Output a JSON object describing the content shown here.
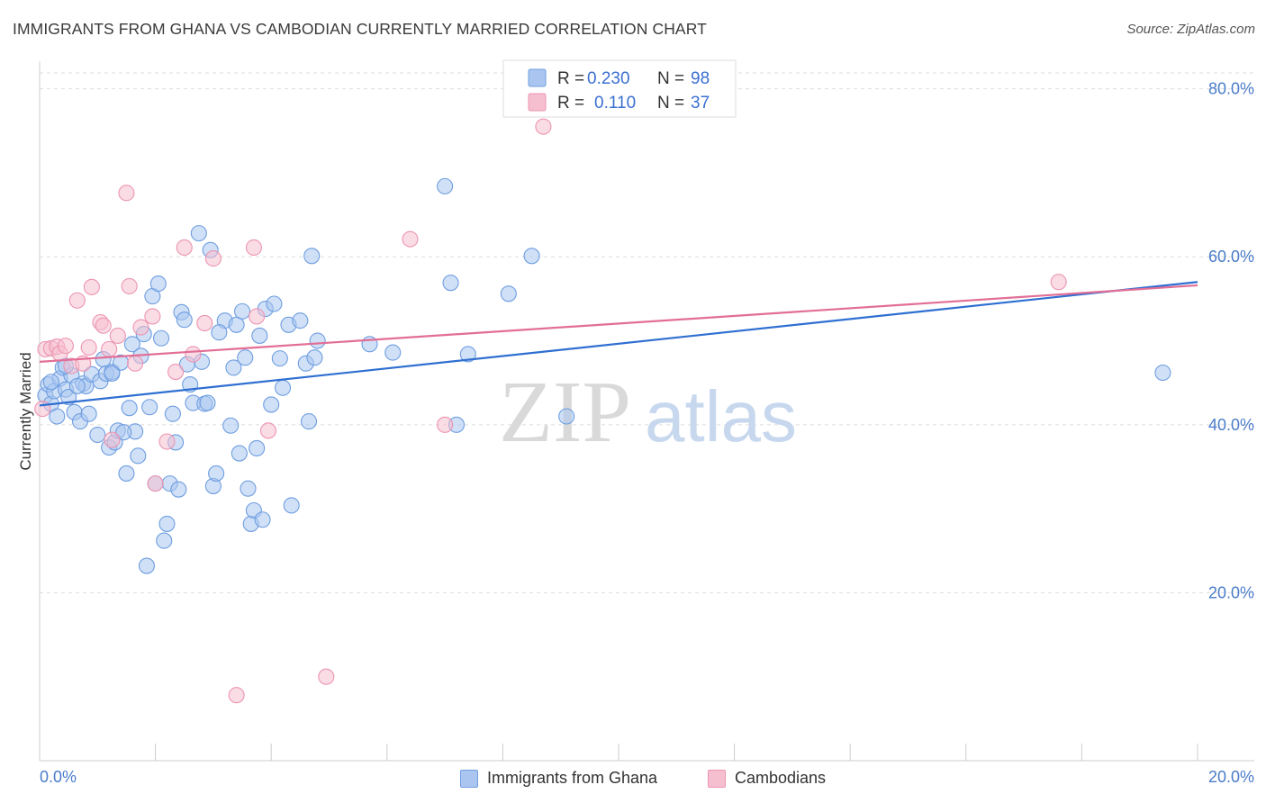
{
  "title": "IMMIGRANTS FROM GHANA VS CAMBODIAN CURRENTLY MARRIED CORRELATION CHART",
  "source": "Source: ZipAtlas.com",
  "watermark": {
    "zip": "ZIP",
    "atlas": "atlas"
  },
  "legend_top": [
    {
      "r_label": "R =",
      "r_value": "0.230",
      "n_label": "N =",
      "n_value": "98"
    },
    {
      "r_label": "R =",
      "r_value": "0.110",
      "n_label": "N =",
      "n_value": "37"
    }
  ],
  "legend_bottom": [
    {
      "label": "Immigrants from Ghana"
    },
    {
      "label": "Cambodians"
    }
  ],
  "colors": {
    "ghana_fill": "#aac6f0",
    "ghana_stroke": "#6f9ee0",
    "ghana_line": "#2f6fd1",
    "camb_fill": "#f6bfd0",
    "camb_stroke": "#ec94b1",
    "camb_line": "#e26e96",
    "tick_text": "#4a7cc9",
    "grid": "#dddddd"
  },
  "chart_data": {
    "type": "scatter",
    "ylabel": "Currently Married",
    "xlim": [
      0,
      20
    ],
    "ylim": [
      0,
      82
    ],
    "y_ticks": [
      {
        "value": 80,
        "label": "80.0%"
      },
      {
        "value": 60,
        "label": "60.0%"
      },
      {
        "value": 40,
        "label": "40.0%"
      },
      {
        "value": 20,
        "label": "20.0%"
      }
    ],
    "x_ticks_labeled": [
      {
        "value": 0,
        "label": "0.0%"
      },
      {
        "value": 20,
        "label": "20.0%"
      }
    ],
    "grid": true,
    "series": [
      {
        "name": "Immigrants from Ghana",
        "r": 0.23,
        "n": 98,
        "trend": [
          [
            0,
            42.3
          ],
          [
            20,
            57.0
          ]
        ],
        "points": [
          [
            0.1,
            43.5
          ],
          [
            0.15,
            44.8
          ],
          [
            0.2,
            42.5
          ],
          [
            0.25,
            44.0
          ],
          [
            0.3,
            41.0
          ],
          [
            0.35,
            45.5
          ],
          [
            0.4,
            46.8
          ],
          [
            0.45,
            44.2
          ],
          [
            0.5,
            43.3
          ],
          [
            0.55,
            45.9
          ],
          [
            0.6,
            41.5
          ],
          [
            0.7,
            40.4
          ],
          [
            0.75,
            44.9
          ],
          [
            0.8,
            44.6
          ],
          [
            0.85,
            41.3
          ],
          [
            0.9,
            46.0
          ],
          [
            1.0,
            38.8
          ],
          [
            1.05,
            45.2
          ],
          [
            1.1,
            47.8
          ],
          [
            1.15,
            46.1
          ],
          [
            1.2,
            37.3
          ],
          [
            1.25,
            46.3
          ],
          [
            1.3,
            37.9
          ],
          [
            1.35,
            39.3
          ],
          [
            1.4,
            47.4
          ],
          [
            1.5,
            34.2
          ],
          [
            1.55,
            42.0
          ],
          [
            1.6,
            49.6
          ],
          [
            1.65,
            39.2
          ],
          [
            1.7,
            36.3
          ],
          [
            1.75,
            48.2
          ],
          [
            1.8,
            50.8
          ],
          [
            1.85,
            23.2
          ],
          [
            1.9,
            42.1
          ],
          [
            1.95,
            55.3
          ],
          [
            2.0,
            33.0
          ],
          [
            2.05,
            56.8
          ],
          [
            2.1,
            50.3
          ],
          [
            2.15,
            26.2
          ],
          [
            2.2,
            28.2
          ],
          [
            2.25,
            33.0
          ],
          [
            2.3,
            41.3
          ],
          [
            2.35,
            37.9
          ],
          [
            2.4,
            32.3
          ],
          [
            2.45,
            53.4
          ],
          [
            2.5,
            52.5
          ],
          [
            2.6,
            44.8
          ],
          [
            2.65,
            42.6
          ],
          [
            2.75,
            62.8
          ],
          [
            2.8,
            47.5
          ],
          [
            2.85,
            42.5
          ],
          [
            2.9,
            42.6
          ],
          [
            2.95,
            60.8
          ],
          [
            3.0,
            32.7
          ],
          [
            3.05,
            34.2
          ],
          [
            3.2,
            52.4
          ],
          [
            3.3,
            39.9
          ],
          [
            3.35,
            46.8
          ],
          [
            3.4,
            51.9
          ],
          [
            3.45,
            36.6
          ],
          [
            3.5,
            53.5
          ],
          [
            3.55,
            48.0
          ],
          [
            3.6,
            32.4
          ],
          [
            3.65,
            28.2
          ],
          [
            3.7,
            29.8
          ],
          [
            3.75,
            37.2
          ],
          [
            3.8,
            50.6
          ],
          [
            3.85,
            28.7
          ],
          [
            3.9,
            53.8
          ],
          [
            4.0,
            42.4
          ],
          [
            4.05,
            54.4
          ],
          [
            4.15,
            47.9
          ],
          [
            4.2,
            44.4
          ],
          [
            4.3,
            51.9
          ],
          [
            4.35,
            30.4
          ],
          [
            4.5,
            52.4
          ],
          [
            4.6,
            47.3
          ],
          [
            4.65,
            40.4
          ],
          [
            4.7,
            60.1
          ],
          [
            4.75,
            48.0
          ],
          [
            4.8,
            50.0
          ],
          [
            5.7,
            49.6
          ],
          [
            6.1,
            48.6
          ],
          [
            7.0,
            68.4
          ],
          [
            7.1,
            56.9
          ],
          [
            7.2,
            40.0
          ],
          [
            7.4,
            48.4
          ],
          [
            8.1,
            55.6
          ],
          [
            8.5,
            60.1
          ],
          [
            9.1,
            41.0
          ],
          [
            19.4,
            46.2
          ],
          [
            0.2,
            45.1
          ],
          [
            0.65,
            44.6
          ],
          [
            1.25,
            46.1
          ],
          [
            2.55,
            47.2
          ],
          [
            3.1,
            51.0
          ],
          [
            0.45,
            47.0
          ],
          [
            1.45,
            39.1
          ]
        ]
      },
      {
        "name": "Cambodians",
        "r": 0.11,
        "n": 37,
        "trend": [
          [
            0,
            47.5
          ],
          [
            20,
            56.6
          ]
        ],
        "points": [
          [
            0.05,
            41.9
          ],
          [
            0.1,
            49.0
          ],
          [
            0.2,
            49.1
          ],
          [
            0.3,
            49.3
          ],
          [
            0.35,
            48.5
          ],
          [
            0.45,
            49.4
          ],
          [
            0.55,
            47.0
          ],
          [
            0.65,
            54.8
          ],
          [
            0.75,
            47.3
          ],
          [
            0.85,
            49.2
          ],
          [
            0.9,
            56.4
          ],
          [
            1.05,
            52.2
          ],
          [
            1.1,
            51.8
          ],
          [
            1.2,
            49.0
          ],
          [
            1.25,
            38.2
          ],
          [
            1.35,
            50.6
          ],
          [
            1.5,
            67.6
          ],
          [
            1.55,
            56.5
          ],
          [
            1.65,
            47.3
          ],
          [
            1.75,
            51.6
          ],
          [
            1.95,
            52.9
          ],
          [
            2.0,
            33.0
          ],
          [
            2.2,
            38.0
          ],
          [
            2.35,
            46.3
          ],
          [
            2.5,
            61.1
          ],
          [
            2.65,
            48.4
          ],
          [
            2.85,
            52.1
          ],
          [
            3.0,
            59.8
          ],
          [
            3.4,
            7.8
          ],
          [
            3.7,
            61.1
          ],
          [
            3.75,
            52.9
          ],
          [
            3.95,
            39.3
          ],
          [
            4.95,
            10.0
          ],
          [
            6.4,
            62.1
          ],
          [
            7.0,
            40.0
          ],
          [
            8.7,
            75.5
          ],
          [
            17.6,
            57.0
          ]
        ]
      }
    ]
  }
}
